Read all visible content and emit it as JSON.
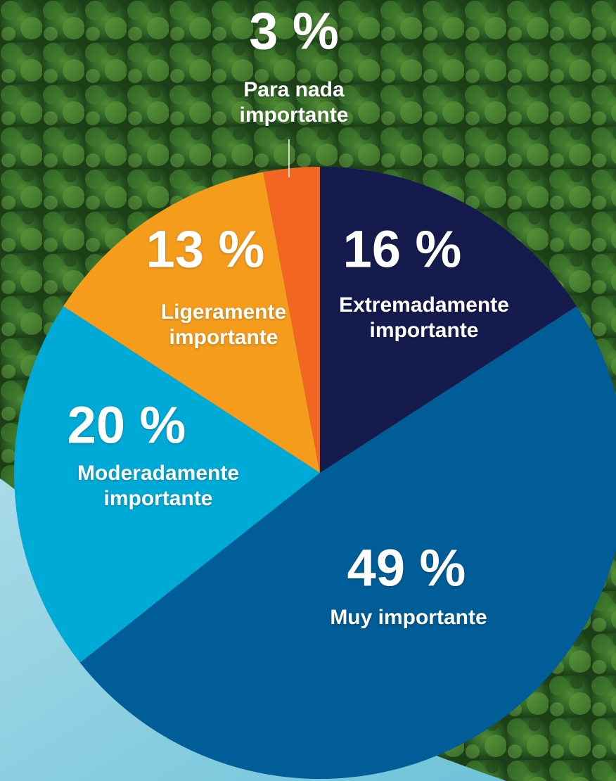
{
  "chart_data": {
    "type": "pie",
    "categories": [
      "Extremadamente importante",
      "Muy importante",
      "Moderadamente importante",
      "Ligeramente importante",
      "Para nada importante"
    ],
    "values": [
      16,
      49,
      20,
      13,
      3
    ],
    "value_labels": [
      "16 %",
      "49 %",
      "20 %",
      "13 %",
      "3 %"
    ],
    "colors": [
      "#161b4d",
      "#005d97",
      "#00aad6",
      "#f59c1d",
      "#f26522"
    ]
  }
}
